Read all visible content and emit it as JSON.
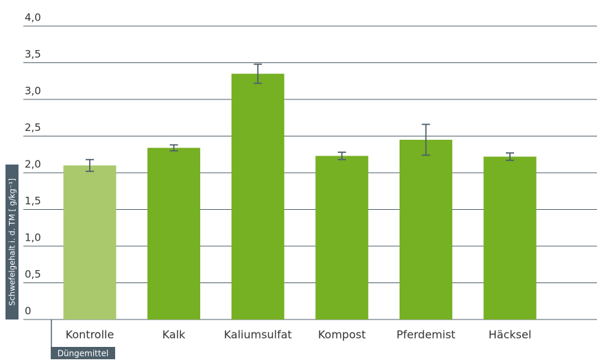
{
  "chart_data": {
    "type": "bar",
    "y_label": "Schwefelgehalt i. d. TM [ g/kg⁻¹]",
    "x_label": "Düngemittel",
    "categories": [
      "Kontrolle",
      "Kalk",
      "Kaliumsulfat",
      "Kompost",
      "Pferdemist",
      "Häcksel"
    ],
    "values": [
      2.1,
      2.34,
      3.35,
      2.23,
      2.45,
      2.22
    ],
    "errors": [
      0.08,
      0.04,
      0.13,
      0.05,
      0.21,
      0.05
    ],
    "colors": [
      "#a9c96c",
      "#76b023",
      "#76b023",
      "#76b023",
      "#76b023",
      "#76b023"
    ],
    "ylim": [
      0,
      4
    ],
    "yticks": [
      0,
      {
        "value": 0.5,
        "label": "0,5"
      },
      {
        "value": 1,
        "label": "1,0"
      },
      {
        "value": 1.5,
        "label": "1,5"
      },
      {
        "value": 2,
        "label": "2,0"
      },
      {
        "value": 2.5,
        "label": "2,5"
      },
      {
        "value": 3,
        "label": "3,0"
      },
      {
        "value": 3.5,
        "label": "3,5"
      },
      {
        "value": 4,
        "label": "4,0"
      }
    ],
    "grid": true
  }
}
